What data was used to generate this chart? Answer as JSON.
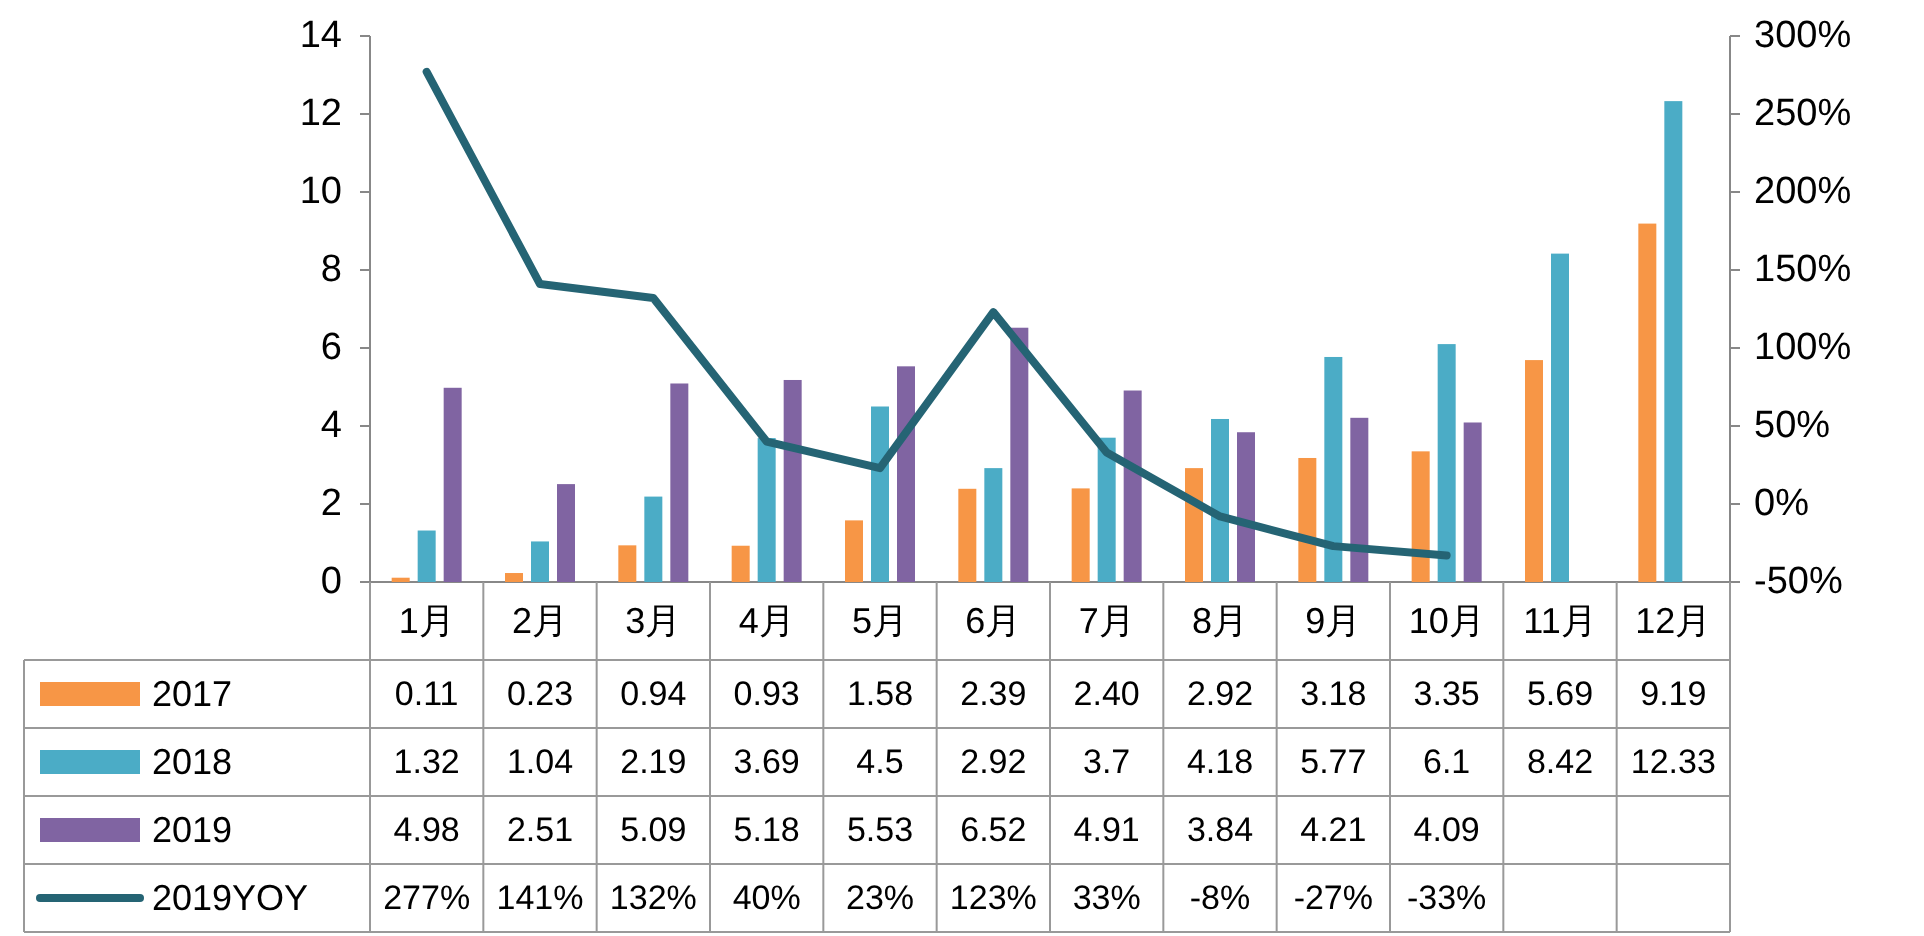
{
  "chart_data": {
    "type": "bar",
    "categories": [
      "1月",
      "2月",
      "3月",
      "4月",
      "5月",
      "6月",
      "7月",
      "8月",
      "9月",
      "10月",
      "11月",
      "12月"
    ],
    "series": [
      {
        "name": "2017",
        "color": "#f79646",
        "values": [
          0.11,
          0.23,
          0.94,
          0.93,
          1.58,
          2.39,
          2.4,
          2.92,
          3.18,
          3.35,
          5.69,
          9.19
        ],
        "value_labels": [
          "0.11",
          "0.23",
          "0.94",
          "0.93",
          "1.58",
          "2.39",
          "2.40",
          "2.92",
          "3.18",
          "3.35",
          "5.69",
          "9.19"
        ]
      },
      {
        "name": "2018",
        "color": "#4bacc6",
        "values": [
          1.32,
          1.04,
          2.19,
          3.69,
          4.5,
          2.92,
          3.7,
          4.18,
          5.77,
          6.1,
          8.42,
          12.33
        ],
        "value_labels": [
          "1.32",
          "1.04",
          "2.19",
          "3.69",
          "4.5",
          "2.92",
          "3.7",
          "4.18",
          "5.77",
          "6.1",
          "8.42",
          "12.33"
        ]
      },
      {
        "name": "2019",
        "color": "#8064a2",
        "values": [
          4.98,
          2.51,
          5.09,
          5.18,
          5.53,
          6.52,
          4.91,
          3.84,
          4.21,
          4.09,
          null,
          null
        ],
        "value_labels": [
          "4.98",
          "2.51",
          "5.09",
          "5.18",
          "5.53",
          "6.52",
          "4.91",
          "3.84",
          "4.21",
          "4.09",
          null,
          null
        ]
      },
      {
        "name": "2019YOY",
        "type": "line",
        "axis": "y2",
        "color": "#256474",
        "values": [
          277,
          141,
          132,
          40,
          23,
          123,
          33,
          -8,
          -27,
          -33,
          null,
          null
        ],
        "value_labels": [
          "277%",
          "141%",
          "132%",
          "40%",
          "23%",
          "123%",
          "33%",
          "-8%",
          "-27%",
          "-33%",
          null,
          null
        ]
      }
    ],
    "ylim": [
      0,
      14
    ],
    "yticks": [
      0,
      2,
      4,
      6,
      8,
      10,
      12,
      14
    ],
    "y2lim": [
      -50,
      300
    ],
    "y2ticks": [
      {
        "value": -50,
        "label": "-50%"
      },
      {
        "value": 0,
        "label": "0%"
      },
      {
        "value": 50,
        "label": "50%"
      },
      {
        "value": 100,
        "label": "100%"
      },
      {
        "value": 150,
        "label": "150%"
      },
      {
        "value": 200,
        "label": "200%"
      },
      {
        "value": 250,
        "label": "250%"
      },
      {
        "value": 300,
        "label": "300%"
      }
    ],
    "legend": "bottom"
  }
}
